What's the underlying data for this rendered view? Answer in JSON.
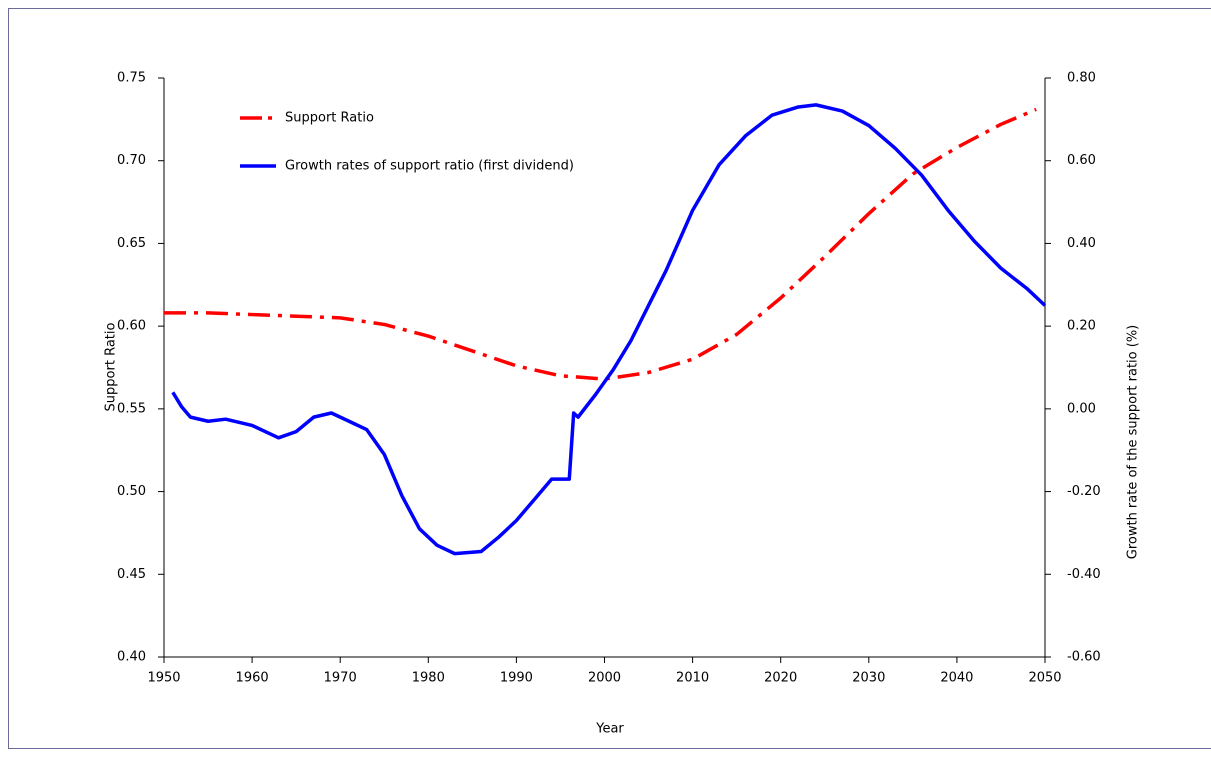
{
  "chart_data": {
    "type": "line",
    "xlabel": "Year",
    "ylabel": "Support Ratio",
    "y2label": "Growth rate of the support ratio (%)",
    "xlim": [
      1950,
      2050
    ],
    "xticks": [
      1950,
      1960,
      1970,
      1980,
      1990,
      2000,
      2010,
      2020,
      2030,
      2040,
      2050
    ],
    "ylim": [
      0.4,
      0.75
    ],
    "yticks": [
      {
        "value": 0.4,
        "label": "0.40"
      },
      {
        "value": 0.45,
        "label": "0.45"
      },
      {
        "value": 0.5,
        "label": "0.50"
      },
      {
        "value": 0.55,
        "label": "0.55"
      },
      {
        "value": 0.6,
        "label": "0.60"
      },
      {
        "value": 0.65,
        "label": "0.65"
      },
      {
        "value": 0.7,
        "label": "0.70"
      },
      {
        "value": 0.75,
        "label": "0.75"
      }
    ],
    "y2lim": [
      -0.6,
      0.8
    ],
    "y2ticks": [
      {
        "value": -0.6,
        "label": "-0.60"
      },
      {
        "value": -0.4,
        "label": "-0.40"
      },
      {
        "value": -0.2,
        "label": "-0.20"
      },
      {
        "value": 0,
        "label": "0.00"
      },
      {
        "value": 0.2,
        "label": "0.20"
      },
      {
        "value": 0.4,
        "label": "0.40"
      },
      {
        "value": 0.6,
        "label": "0.60"
      },
      {
        "value": 0.8,
        "label": "0.80"
      }
    ],
    "legend": "top-left",
    "series": [
      {
        "name": "Support Ratio",
        "color": "#ff0000",
        "style": "dashdot",
        "x": [
          1950,
          1955,
          1960,
          1965,
          1970,
          1975,
          1980,
          1985,
          1990,
          1995,
          2000,
          2005,
          2010,
          2015,
          2020,
          2025,
          2030,
          2035,
          2040,
          2045,
          2049
        ],
        "values": [
          0.608,
          0.608,
          0.607,
          0.606,
          0.605,
          0.601,
          0.594,
          0.585,
          0.576,
          0.57,
          0.568,
          0.572,
          0.58,
          0.595,
          0.617,
          0.642,
          0.668,
          0.692,
          0.708,
          0.722,
          0.731
        ]
      },
      {
        "name": "Growth rates of support ratio (first dividend)",
        "color": "#0000ff",
        "style": "solid",
        "axis": "y2",
        "x": [
          1951,
          1952,
          1953,
          1955,
          1957,
          1960,
          1963,
          1965,
          1967,
          1969,
          1971,
          1973,
          1975,
          1977,
          1979,
          1981,
          1983,
          1986,
          1988,
          1990,
          1992,
          1994,
          1996,
          1996.5,
          1997,
          1999,
          2001,
          2003,
          2005,
          2007,
          2010,
          2013,
          2016,
          2019,
          2022,
          2024,
          2027,
          2030,
          2033,
          2036,
          2039,
          2042,
          2045,
          2048,
          2050
        ],
        "values": [
          0.04,
          0.005,
          -0.02,
          -0.03,
          -0.025,
          -0.04,
          -0.07,
          -0.055,
          -0.02,
          -0.01,
          -0.03,
          -0.05,
          -0.11,
          -0.21,
          -0.29,
          -0.33,
          -0.35,
          -0.345,
          -0.31,
          -0.27,
          -0.22,
          -0.17,
          -0.17,
          -0.01,
          -0.02,
          0.035,
          0.095,
          0.165,
          0.25,
          0.335,
          0.48,
          0.59,
          0.66,
          0.71,
          0.73,
          0.735,
          0.72,
          0.685,
          0.63,
          0.565,
          0.48,
          0.405,
          0.34,
          0.29,
          0.25
        ]
      }
    ]
  }
}
